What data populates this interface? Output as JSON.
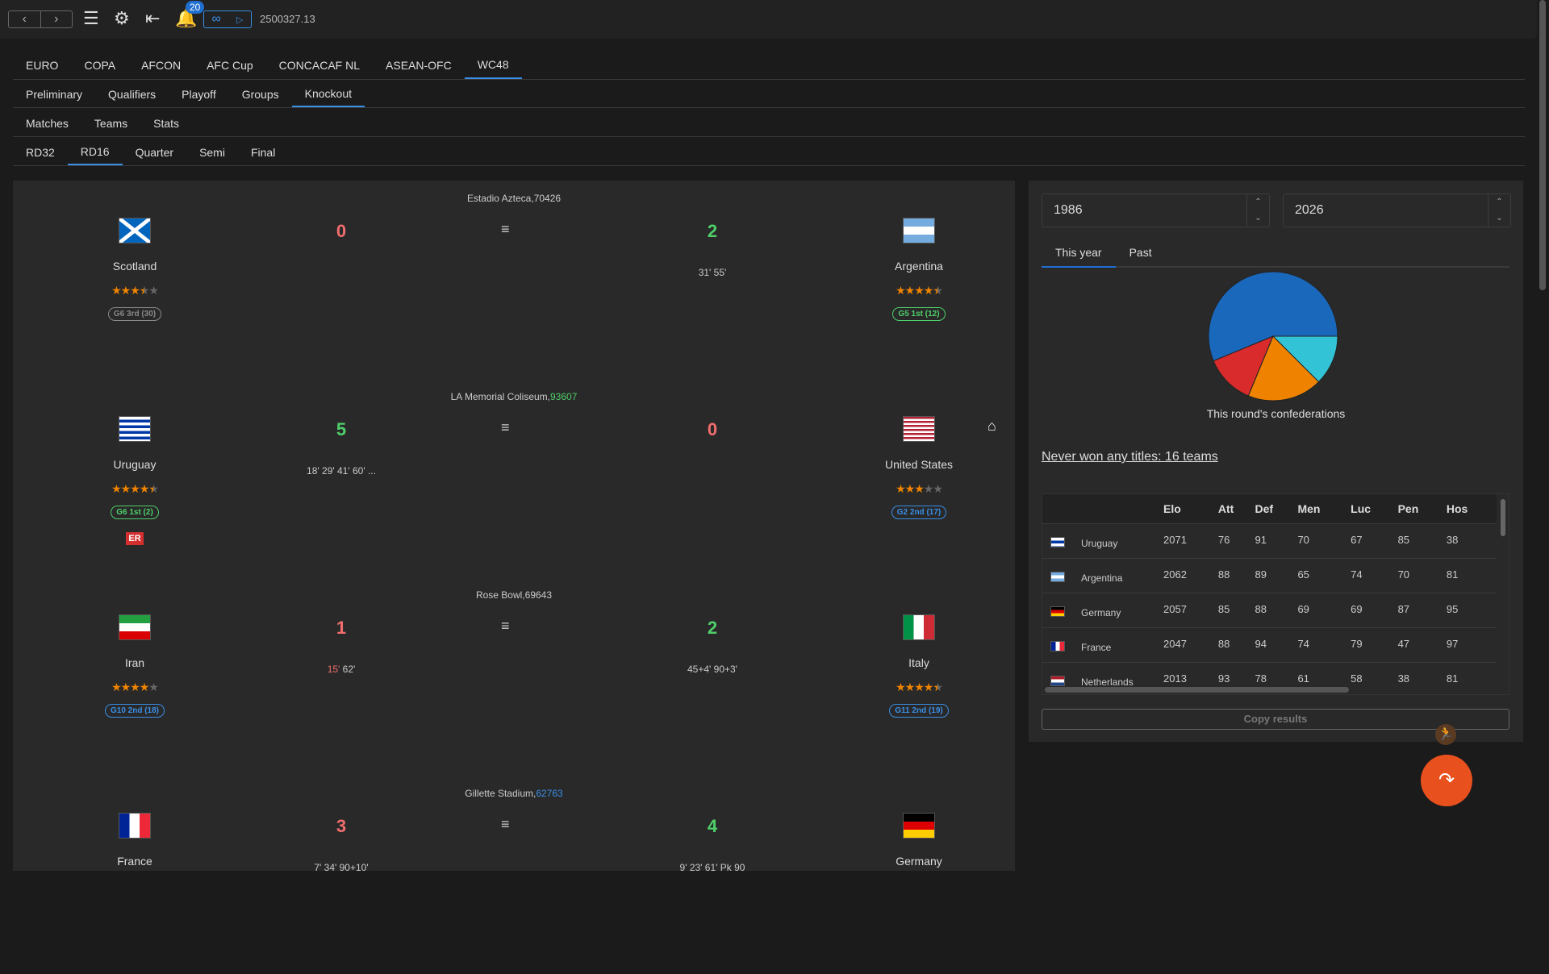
{
  "topbar": {
    "notifications": "20",
    "version": "2500327.13",
    "icons": [
      "back-icon",
      "forward-icon",
      "menu-icon",
      "gear-icon",
      "login-icon",
      "bell-icon",
      "infinity-icon",
      "play-icon"
    ]
  },
  "tabs_competition": [
    "EURO",
    "COPA",
    "AFCON",
    "AFC Cup",
    "CONCACAF NL",
    "ASEAN-OFC",
    "WC48"
  ],
  "tabs_stage": [
    "Preliminary",
    "Qualifiers",
    "Playoff",
    "Groups",
    "Knockout"
  ],
  "tabs_view": [
    "Matches",
    "Teams",
    "Stats"
  ],
  "tabs_round": [
    "RD32",
    "RD16",
    "Quarter",
    "Semi",
    "Final"
  ],
  "colors": {
    "accent": "#3a8ee6",
    "win": "#4fcf6a",
    "loss": "#f26d6d",
    "star": "#f08400",
    "fab": "#e8501e"
  },
  "matches": [
    {
      "stadium": "Estadio Azteca,",
      "attendance": "70426",
      "home": {
        "name": "Scotland",
        "rating": 3.5,
        "group": "G6 3rd (30)",
        "score": "0",
        "minutes": ""
      },
      "away": {
        "name": "Argentina",
        "rating": 4.5,
        "group": "G5 1st (12)",
        "score": "2",
        "minutes": "31' 55'"
      }
    },
    {
      "stadium": "LA Memorial Coliseum,",
      "attendance": "93607",
      "home": {
        "name": "Uruguay",
        "rating": 4.5,
        "group": "G6 1st (2)",
        "score": "5",
        "minutes": "18' 29' 41' 60' ...",
        "tag": "ER"
      },
      "away": {
        "name": "United States",
        "rating": 3,
        "group": "G2 2nd (17)",
        "score": "0",
        "minutes": ""
      }
    },
    {
      "stadium": "Rose Bowl,",
      "attendance": "69643",
      "home": {
        "name": "Iran",
        "rating": 4,
        "group": "G10 2nd (18)",
        "score": "1",
        "minutes_red": "15'",
        "minutes": " 62'"
      },
      "away": {
        "name": "Italy",
        "rating": 4.5,
        "group": "G11 2nd (19)",
        "score": "2",
        "minutes": "45+4' 90+3'"
      }
    },
    {
      "stadium": "Gillette Stadium,",
      "attendance": "62763",
      "home": {
        "name": "France",
        "score": "3",
        "minutes": "7' 34' 90+10'"
      },
      "away": {
        "name": "Germany",
        "score": "4",
        "minutes": "9' 23' 61' Pk 90"
      }
    }
  ],
  "sidebar": {
    "from_year": "1986",
    "to_year": "2026",
    "tabs": [
      "This year",
      "Past"
    ],
    "pie_title": "This round's confederations",
    "never_won": "Never won any titles: 16 teams",
    "copy": "Copy results",
    "table": {
      "headers": [
        "Elo",
        "Att",
        "Def",
        "Men",
        "Luc",
        "Pen",
        "Hos"
      ],
      "rows": [
        {
          "team": "Uruguay",
          "values": [
            "2071",
            "76",
            "91",
            "70",
            "67",
            "85",
            "38"
          ]
        },
        {
          "team": "Argentina",
          "values": [
            "2062",
            "88",
            "89",
            "65",
            "74",
            "70",
            "81"
          ]
        },
        {
          "team": "Germany",
          "values": [
            "2057",
            "85",
            "88",
            "69",
            "69",
            "87",
            "95"
          ]
        },
        {
          "team": "France",
          "values": [
            "2047",
            "88",
            "94",
            "74",
            "79",
            "47",
            "97"
          ]
        },
        {
          "team": "Netherlands",
          "values": [
            "2013",
            "93",
            "78",
            "61",
            "58",
            "38",
            "81"
          ]
        }
      ]
    }
  },
  "chart_data": {
    "type": "pie",
    "title": "This round's confederations",
    "values": [
      9,
      2,
      3,
      2
    ],
    "colors": [
      "#1a68bb",
      "#d92b2b",
      "#ef8300",
      "#33c3d6"
    ]
  }
}
